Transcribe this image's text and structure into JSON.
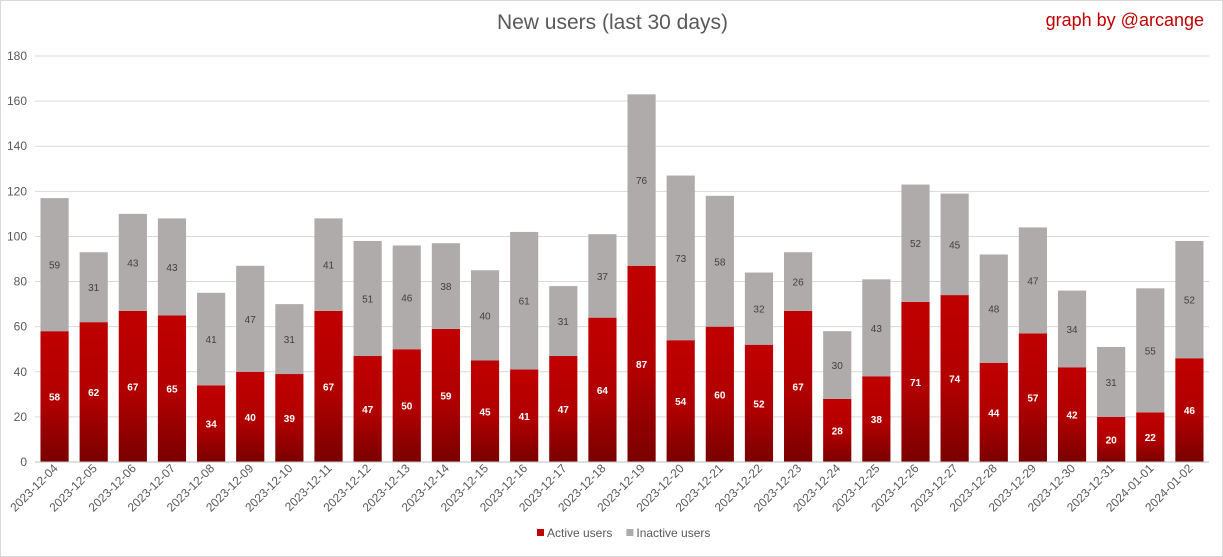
{
  "header": {
    "title": "New users (last 30 days)",
    "credit": "graph by @arcange"
  },
  "chart_data": {
    "type": "bar",
    "stacked": true,
    "title": "New users (last 30 days)",
    "categories": [
      "2023-12-04",
      "2023-12-05",
      "2023-12-06",
      "2023-12-07",
      "2023-12-08",
      "2023-12-09",
      "2023-12-10",
      "2023-12-11",
      "2023-12-12",
      "2023-12-13",
      "2023-12-14",
      "2023-12-15",
      "2023-12-16",
      "2023-12-17",
      "2023-12-18",
      "2023-12-19",
      "2023-12-20",
      "2023-12-21",
      "2023-12-22",
      "2023-12-23",
      "2023-12-24",
      "2023-12-25",
      "2023-12-26",
      "2023-12-27",
      "2023-12-28",
      "2023-12-29",
      "2023-12-30",
      "2023-12-31",
      "2024-01-01",
      "2024-01-02"
    ],
    "series": [
      {
        "name": "Active users",
        "color": "#c00000",
        "values": [
          58,
          62,
          67,
          65,
          34,
          40,
          39,
          67,
          47,
          50,
          59,
          45,
          41,
          47,
          64,
          87,
          54,
          60,
          52,
          67,
          28,
          38,
          71,
          74,
          44,
          57,
          42,
          20,
          22,
          46
        ]
      },
      {
        "name": "Inactive users",
        "color": "#afabab",
        "values": [
          59,
          31,
          43,
          43,
          41,
          47,
          31,
          41,
          51,
          46,
          38,
          40,
          61,
          31,
          37,
          76,
          73,
          58,
          32,
          26,
          30,
          43,
          52,
          45,
          48,
          47,
          34,
          31,
          55,
          52
        ]
      }
    ],
    "ylim": [
      0,
      180
    ],
    "yticks": [
      0,
      20,
      40,
      60,
      80,
      100,
      120,
      140,
      160,
      180
    ],
    "grid": true,
    "legend_position": "bottom"
  }
}
